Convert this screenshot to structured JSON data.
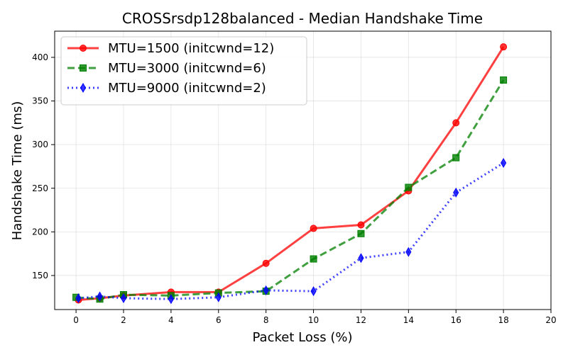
{
  "chart_data": {
    "type": "line",
    "title": "CROSSrsdp128balanced - Median Handshake Time",
    "xlabel": "Packet Loss (%)",
    "ylabel": "Handshake Time (ms)",
    "xlim": [
      -0.9,
      20
    ],
    "ylim": [
      111,
      430
    ],
    "xticks": [
      0,
      2,
      4,
      6,
      8,
      10,
      12,
      14,
      16,
      18,
      20
    ],
    "yticks": [
      150,
      200,
      250,
      300,
      350,
      400
    ],
    "grid": true,
    "legend_position": "top-left",
    "series": [
      {
        "name": "MTU=1500 (initcwnd=12)",
        "color": "#ff0000",
        "marker": "circle",
        "line_style": "solid",
        "x": [
          0.1,
          1,
          2,
          4,
          6,
          8,
          10,
          12,
          14,
          16,
          18
        ],
        "y": [
          122,
          124,
          127,
          131,
          131,
          164,
          204,
          208,
          247,
          325,
          412
        ]
      },
      {
        "name": "MTU=3000 (initcwnd=6)",
        "color": "#008000",
        "marker": "square",
        "line_style": "dashed",
        "x": [
          0,
          1,
          2,
          4,
          6,
          8,
          10,
          12,
          14,
          16,
          18
        ],
        "y": [
          125,
          123,
          128,
          127,
          130,
          132,
          169,
          198,
          251,
          285,
          374
        ]
      },
      {
        "name": "MTU=9000 (initcwnd=2)",
        "color": "#0000ff",
        "marker": "thin_diamond",
        "line_style": "dotted",
        "x": [
          0.1,
          1,
          2,
          4,
          6,
          8,
          10,
          12,
          14,
          16,
          18
        ],
        "y": [
          124,
          126,
          124,
          123,
          125,
          133,
          132,
          170,
          177,
          245,
          279
        ]
      }
    ]
  }
}
